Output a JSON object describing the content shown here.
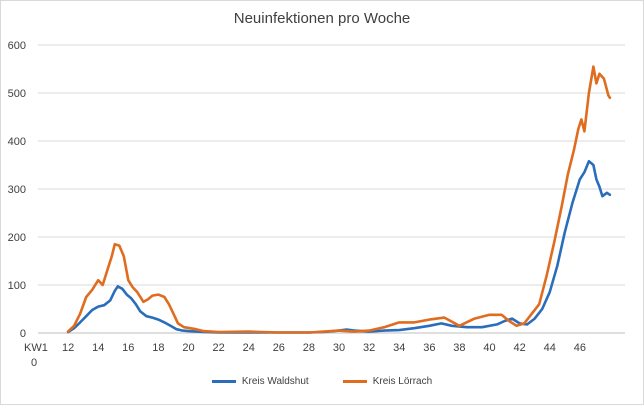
{
  "chart_data": {
    "type": "line",
    "title": "Neuinfektionen pro Woche",
    "xlabel": "",
    "ylabel": "",
    "x_start_label": "KW1",
    "x_start_label_line2": "0",
    "xlim": [
      10,
      49
    ],
    "ylim": [
      0,
      600
    ],
    "y_ticks": [
      0,
      100,
      200,
      300,
      400,
      500,
      600
    ],
    "x_ticks": [
      12,
      14,
      16,
      18,
      20,
      22,
      24,
      26,
      28,
      30,
      32,
      34,
      36,
      38,
      40,
      42,
      44,
      46
    ],
    "grid": "horizontal",
    "legend": "bottom",
    "series": [
      {
        "name": "Kreis Waldshut",
        "color": "#2a6ebb",
        "points": [
          [
            12.0,
            2
          ],
          [
            12.4,
            10
          ],
          [
            12.8,
            22
          ],
          [
            13.2,
            35
          ],
          [
            13.6,
            48
          ],
          [
            14.0,
            55
          ],
          [
            14.4,
            58
          ],
          [
            14.8,
            68
          ],
          [
            15.1,
            88
          ],
          [
            15.3,
            97
          ],
          [
            15.6,
            92
          ],
          [
            15.9,
            80
          ],
          [
            16.2,
            72
          ],
          [
            16.5,
            60
          ],
          [
            16.8,
            45
          ],
          [
            17.2,
            35
          ],
          [
            17.6,
            32
          ],
          [
            18.0,
            28
          ],
          [
            18.4,
            22
          ],
          [
            18.8,
            15
          ],
          [
            19.2,
            8
          ],
          [
            19.6,
            5
          ],
          [
            20.0,
            4
          ],
          [
            21.0,
            2
          ],
          [
            22.0,
            1
          ],
          [
            24.0,
            1
          ],
          [
            26.0,
            1
          ],
          [
            28.0,
            1
          ],
          [
            29.0,
            2
          ],
          [
            30.0,
            5
          ],
          [
            30.5,
            7
          ],
          [
            31.0,
            5
          ],
          [
            32.0,
            3
          ],
          [
            33.0,
            5
          ],
          [
            34.0,
            6
          ],
          [
            35.0,
            10
          ],
          [
            36.0,
            15
          ],
          [
            36.8,
            20
          ],
          [
            37.5,
            15
          ],
          [
            38.5,
            12
          ],
          [
            39.5,
            12
          ],
          [
            40.5,
            18
          ],
          [
            41.0,
            25
          ],
          [
            41.5,
            30
          ],
          [
            42.0,
            20
          ],
          [
            42.5,
            18
          ],
          [
            43.0,
            30
          ],
          [
            43.5,
            50
          ],
          [
            44.0,
            85
          ],
          [
            44.5,
            140
          ],
          [
            45.0,
            210
          ],
          [
            45.5,
            270
          ],
          [
            46.0,
            320
          ],
          [
            46.3,
            335
          ],
          [
            46.6,
            358
          ],
          [
            46.9,
            350
          ],
          [
            47.1,
            320
          ],
          [
            47.3,
            305
          ],
          [
            47.5,
            285
          ],
          [
            47.8,
            292
          ],
          [
            48.0,
            288
          ]
        ]
      },
      {
        "name": "Kreis Lörrach",
        "color": "#e06c1f",
        "points": [
          [
            12.0,
            3
          ],
          [
            12.4,
            15
          ],
          [
            12.8,
            40
          ],
          [
            13.2,
            75
          ],
          [
            13.6,
            90
          ],
          [
            14.0,
            110
          ],
          [
            14.3,
            100
          ],
          [
            14.6,
            130
          ],
          [
            14.9,
            160
          ],
          [
            15.1,
            185
          ],
          [
            15.4,
            182
          ],
          [
            15.7,
            160
          ],
          [
            16.0,
            110
          ],
          [
            16.3,
            95
          ],
          [
            16.6,
            85
          ],
          [
            17.0,
            65
          ],
          [
            17.3,
            70
          ],
          [
            17.6,
            78
          ],
          [
            18.0,
            80
          ],
          [
            18.4,
            75
          ],
          [
            18.7,
            60
          ],
          [
            19.0,
            40
          ],
          [
            19.3,
            20
          ],
          [
            19.7,
            12
          ],
          [
            20.5,
            8
          ],
          [
            21.0,
            4
          ],
          [
            22.0,
            2
          ],
          [
            24.0,
            3
          ],
          [
            26.0,
            1
          ],
          [
            28.0,
            1
          ],
          [
            29.0,
            3
          ],
          [
            30.0,
            5
          ],
          [
            31.0,
            3
          ],
          [
            32.0,
            5
          ],
          [
            33.0,
            12
          ],
          [
            34.0,
            22
          ],
          [
            35.0,
            22
          ],
          [
            36.0,
            28
          ],
          [
            37.0,
            32
          ],
          [
            38.0,
            15
          ],
          [
            39.0,
            30
          ],
          [
            40.0,
            38
          ],
          [
            40.8,
            38
          ],
          [
            41.3,
            25
          ],
          [
            41.8,
            15
          ],
          [
            42.3,
            20
          ],
          [
            42.8,
            40
          ],
          [
            43.3,
            60
          ],
          [
            43.8,
            120
          ],
          [
            44.3,
            190
          ],
          [
            44.8,
            265
          ],
          [
            45.2,
            330
          ],
          [
            45.6,
            380
          ],
          [
            45.9,
            425
          ],
          [
            46.1,
            445
          ],
          [
            46.3,
            420
          ],
          [
            46.6,
            500
          ],
          [
            46.9,
            555
          ],
          [
            47.1,
            520
          ],
          [
            47.3,
            540
          ],
          [
            47.6,
            530
          ],
          [
            47.9,
            495
          ],
          [
            48.0,
            490
          ]
        ]
      }
    ]
  }
}
